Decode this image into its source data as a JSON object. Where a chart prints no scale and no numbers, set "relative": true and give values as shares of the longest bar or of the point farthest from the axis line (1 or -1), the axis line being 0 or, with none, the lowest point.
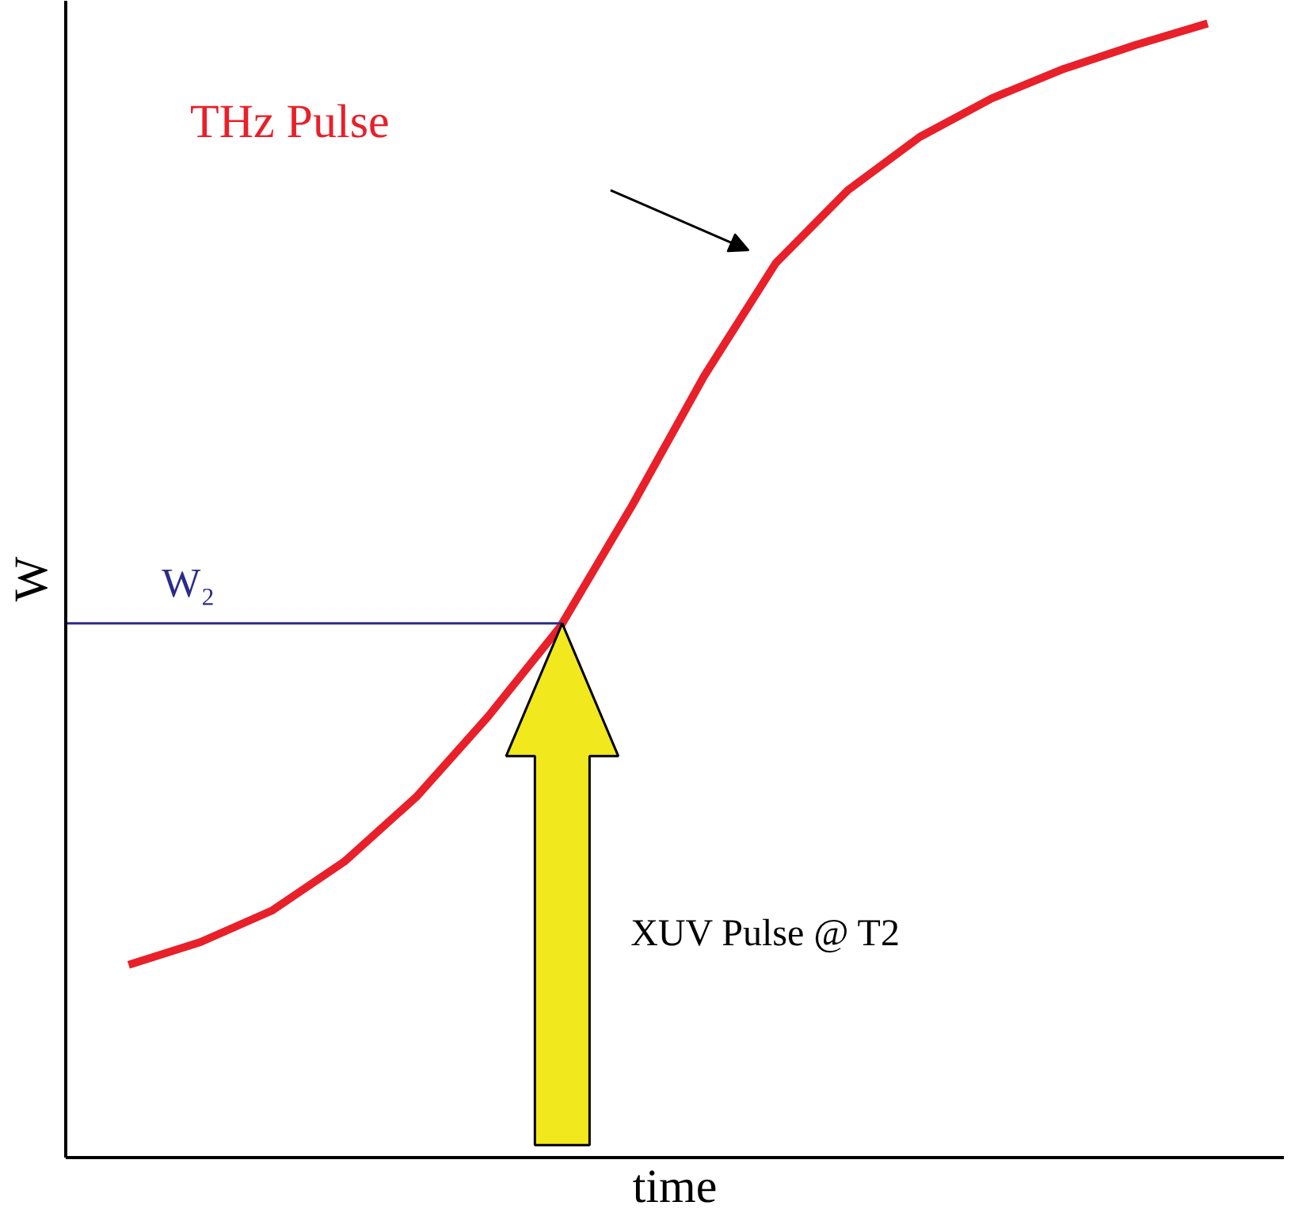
{
  "chart_data": {
    "type": "line",
    "relative": true,
    "line_style": "solid",
    "xlabel": "time",
    "ylabel": "W",
    "categories": [
      null,
      null,
      null,
      null,
      null,
      null,
      null,
      null,
      null,
      null,
      null,
      null,
      null,
      null,
      null,
      null
    ],
    "series": [
      {
        "name": "THz Pulse",
        "color": "#e8202a",
        "values": [
          0.17,
          0.19,
          0.218,
          0.261,
          0.318,
          0.389,
          0.468,
          0.575,
          0.689,
          0.789,
          0.853,
          0.9,
          0.934,
          0.96,
          0.981,
          1.0
        ]
      }
    ],
    "ref_lines": [
      {
        "axis": "y",
        "value": 0.471,
        "label": "W₂",
        "color": "#2b2b8c"
      }
    ],
    "annotations": [
      "XUV Pulse @ T2"
    ]
  }
}
